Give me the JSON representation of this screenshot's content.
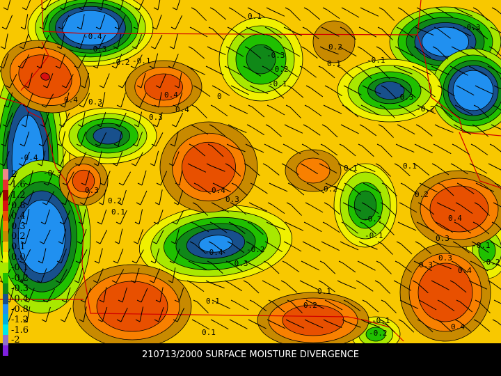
{
  "title": "210713/2000 SURFACE MOISTURE DIVERGENCE",
  "legend": {
    "levels": [
      {
        "label": "2",
        "color": "#f08888"
      },
      {
        "label": "1.6",
        "color": "#e83030"
      },
      {
        "label": "1.2",
        "color": "#a00000"
      },
      {
        "label": "0.8",
        "color": "#d81010"
      },
      {
        "label": "0.4",
        "color": "#e85000"
      },
      {
        "label": "0.3",
        "color": "#f88000"
      },
      {
        "label": "0.2",
        "color": "#c88a00"
      },
      {
        "label": "0.1",
        "color": "#f8c800"
      },
      {
        "label": "0.0",
        "color": "#f0f000"
      },
      {
        "label": "-0.1",
        "color": "#a8e800"
      },
      {
        "label": "-0.2",
        "color": "#20c000"
      },
      {
        "label": "-0.3",
        "color": "#108818"
      },
      {
        "label": "-0.4",
        "color": "#18508c"
      },
      {
        "label": "-0.8",
        "color": "#2090f0"
      },
      {
        "label": "-1.2",
        "color": "#00b0e0"
      },
      {
        "label": "-1.6",
        "color": "#00e8e8"
      },
      {
        "label": "-2",
        "color": "#9070c8"
      },
      {
        "label": "",
        "color": "#8020e0"
      }
    ]
  },
  "contour_labels": [
    "0.1",
    "-0.4",
    "-0.3",
    "-0.2",
    "-0.1",
    "0.4",
    "-0.3",
    "-0.2",
    "-0.1",
    "0.2",
    "0.1",
    "-0.1",
    "-0.3",
    "-0.2",
    "-0.3",
    "0.4",
    "0.3",
    "0.4",
    "0.3",
    "0",
    "0.4",
    "0.3",
    "0.1",
    "0.2",
    "-0.4",
    "-0.3",
    "0.3",
    "0.2",
    "0.1",
    "-0.2",
    "-0.1",
    "0.1",
    "0.4",
    "0.1",
    "-0.4",
    "-0.3",
    "-0.2",
    "0.2",
    "0.1",
    "0.3",
    "0.3",
    "0.4",
    "-0.1",
    "-0.2",
    "0.2",
    "0.3",
    "0.4",
    "0.1",
    "-0.1",
    "-0.2"
  ],
  "colors": {
    "border": "#d00000",
    "barb": "#000000",
    "background": "#000000",
    "title_text": "#ffffff"
  }
}
